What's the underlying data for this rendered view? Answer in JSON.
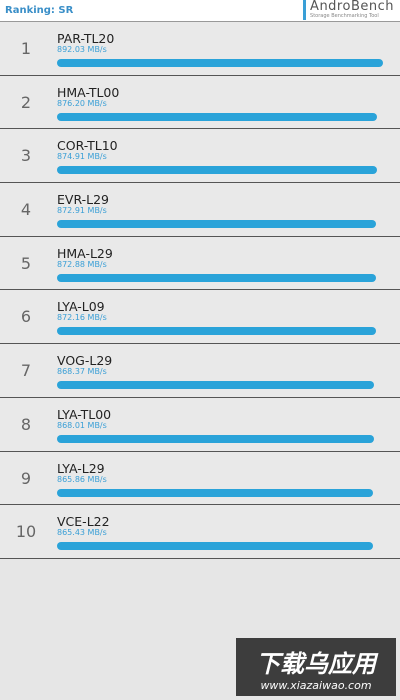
{
  "header": {
    "title": "Ranking: SR",
    "logo": "AndroBench",
    "logo_subtitle": "Storage Benchmarking Tool"
  },
  "rows": [
    {
      "rank": 1,
      "model": "PAR-TL20",
      "value": 892.03,
      "value_label": "892.03 MB/s"
    },
    {
      "rank": 2,
      "model": "HMA-TL00",
      "value": 876.2,
      "value_label": "876.20 MB/s"
    },
    {
      "rank": 3,
      "model": "COR-TL10",
      "value": 874.91,
      "value_label": "874.91 MB/s"
    },
    {
      "rank": 4,
      "model": "EVR-L29",
      "value": 872.91,
      "value_label": "872.91 MB/s"
    },
    {
      "rank": 5,
      "model": "HMA-L29",
      "value": 872.88,
      "value_label": "872.88 MB/s"
    },
    {
      "rank": 6,
      "model": "LYA-L09",
      "value": 872.16,
      "value_label": "872.16 MB/s"
    },
    {
      "rank": 7,
      "model": "VOG-L29",
      "value": 868.37,
      "value_label": "868.37 MB/s"
    },
    {
      "rank": 8,
      "model": "LYA-TL00",
      "value": 868.01,
      "value_label": "868.01 MB/s"
    },
    {
      "rank": 9,
      "model": "LYA-L29",
      "value": 865.86,
      "value_label": "865.86 MB/s"
    },
    {
      "rank": 10,
      "model": "VCE-L22",
      "value": 865.43,
      "value_label": "865.43 MB/s"
    }
  ],
  "watermark": {
    "title": "下载乌应用",
    "url": "www.xiazaiwao.com"
  }
}
